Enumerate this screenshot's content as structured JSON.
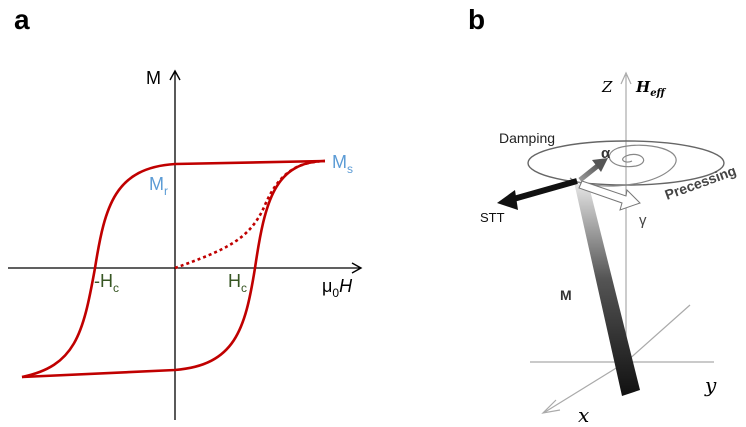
{
  "panel_a": {
    "letter": "a",
    "axis_y_label": "M",
    "axis_x_label_prefix": "μ",
    "axis_x_label_sub": "0",
    "axis_x_label_var": "H",
    "ms_main": "M",
    "ms_sub": "s",
    "mr_main": "M",
    "mr_sub": "r",
    "neg_hc_main": "-H",
    "neg_hc_sub": "c",
    "hc_main": "H",
    "hc_sub": "c",
    "colors": {
      "loop": "#c00000",
      "mlabels": "#5b9bd5",
      "hlabels": "#375623",
      "axis": "#000000"
    }
  },
  "panel_b": {
    "letter": "b",
    "z_label": "Z",
    "heff_main": "H",
    "heff_sub": "eff",
    "damping_label": "Damping",
    "precessing_label": "Precessing",
    "alpha_label": "α",
    "gamma_label": "γ",
    "stt_label": "STT",
    "m_label": "M",
    "y_label": "y",
    "x_label": "x"
  }
}
